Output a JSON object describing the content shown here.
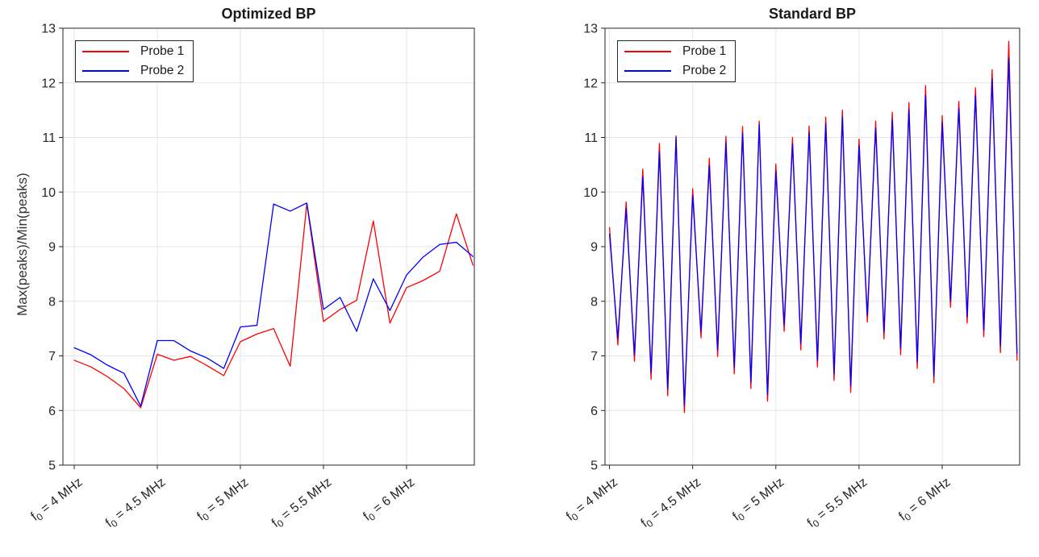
{
  "figure": {
    "background": "#ffffff"
  },
  "chart_data": [
    {
      "type": "line",
      "title": "Optimized BP",
      "ylabel": "Max(peaks)/Min(peaks)",
      "xlabel": "",
      "ylim": [
        5,
        13
      ],
      "yticks": [
        5,
        6,
        7,
        8,
        9,
        10,
        11,
        12,
        13
      ],
      "xlim": [
        0.32,
        25.08
      ],
      "xticks": [
        1,
        6,
        11,
        16,
        21
      ],
      "xtick_labels": [
        "f_0 = 4 MHz",
        "f_0 = 4.5 MHz",
        "f_0 = 5 MHz",
        "f_0 = 5.5 MHz",
        "f_0 = 6 MHz"
      ],
      "grid": true,
      "legend_position": "top-left",
      "x": [
        1,
        2,
        3,
        4,
        5,
        6,
        7,
        8,
        9,
        10,
        11,
        12,
        13,
        14,
        15,
        16,
        17,
        18,
        19,
        20,
        21,
        22,
        23,
        24,
        25
      ],
      "series": [
        {
          "name": "Probe 1",
          "color": "#ff0000",
          "values": [
            6.92,
            6.8,
            6.62,
            6.4,
            6.05,
            7.03,
            6.92,
            6.99,
            6.82,
            6.64,
            7.26,
            7.4,
            7.5,
            6.81,
            9.79,
            7.63,
            7.85,
            8.02,
            9.47,
            7.6,
            8.25,
            8.38,
            8.55,
            9.6,
            8.66
          ]
        },
        {
          "name": "Probe 2",
          "color": "#0000ff",
          "values": [
            7.15,
            7.02,
            6.83,
            6.68,
            6.08,
            7.28,
            7.28,
            7.09,
            6.96,
            6.77,
            7.53,
            7.56,
            9.78,
            9.65,
            9.8,
            7.85,
            8.07,
            7.45,
            8.41,
            7.83,
            8.48,
            8.81,
            9.04,
            9.08,
            8.82
          ]
        }
      ]
    },
    {
      "type": "line",
      "title": "Standard BP",
      "ylabel": "",
      "xlabel": "",
      "ylim": [
        5,
        13
      ],
      "yticks": [
        5,
        6,
        7,
        8,
        9,
        10,
        11,
        12,
        13
      ],
      "xlim": [
        0.46,
        50.31
      ],
      "xticks": [
        1,
        11,
        21,
        31,
        41
      ],
      "xtick_labels": [
        "f_0 = 4 MHz",
        "f_0 = 4.5 MHz",
        "f_0 = 5 MHz",
        "f_0 = 5.5 MHz",
        "f_0 = 6 MHz"
      ],
      "grid": true,
      "legend_position": "top-left",
      "x": [
        1,
        2,
        3,
        4,
        5,
        6,
        7,
        8,
        9,
        10,
        11,
        12,
        13,
        14,
        15,
        16,
        17,
        18,
        19,
        20,
        21,
        22,
        23,
        24,
        25,
        26,
        27,
        28,
        29,
        30,
        31,
        32,
        33,
        34,
        35,
        36,
        37,
        38,
        39,
        40,
        41,
        42,
        43,
        44,
        45,
        46,
        47,
        48,
        49,
        50
      ],
      "series": [
        {
          "name": "Probe 1",
          "color": "#ff0000",
          "values": [
            9.35,
            7.2,
            9.82,
            6.9,
            10.42,
            6.57,
            10.89,
            6.27,
            11.03,
            5.96,
            10.06,
            7.33,
            10.62,
            6.99,
            11.02,
            6.67,
            11.2,
            6.4,
            11.3,
            6.17,
            10.51,
            7.45,
            11.0,
            7.11,
            11.21,
            6.8,
            11.37,
            6.55,
            11.5,
            6.33,
            10.97,
            7.62,
            11.3,
            7.31,
            11.46,
            7.02,
            11.64,
            6.77,
            11.95,
            6.51,
            11.4,
            7.89,
            11.66,
            7.6,
            11.91,
            7.35,
            12.24,
            7.06,
            12.76,
            6.92
          ]
        },
        {
          "name": "Probe 2",
          "color": "#0000ff",
          "values": [
            9.23,
            7.32,
            9.7,
            7.02,
            10.28,
            6.7,
            10.74,
            6.4,
            11.0,
            6.1,
            9.94,
            7.45,
            10.48,
            7.11,
            10.9,
            6.79,
            11.08,
            6.52,
            11.24,
            6.29,
            10.38,
            7.57,
            10.88,
            7.23,
            11.09,
            6.92,
            11.25,
            6.67,
            11.38,
            6.45,
            10.85,
            7.74,
            11.17,
            7.43,
            11.33,
            7.14,
            11.51,
            6.89,
            11.77,
            6.63,
            11.27,
            8.0,
            11.53,
            7.72,
            11.77,
            7.47,
            12.07,
            7.18,
            12.45,
            7.04
          ]
        }
      ]
    }
  ],
  "style": {
    "axis_color": "#262626",
    "grid_color": "#e6e6e6",
    "tick_label_color": "#262626"
  }
}
